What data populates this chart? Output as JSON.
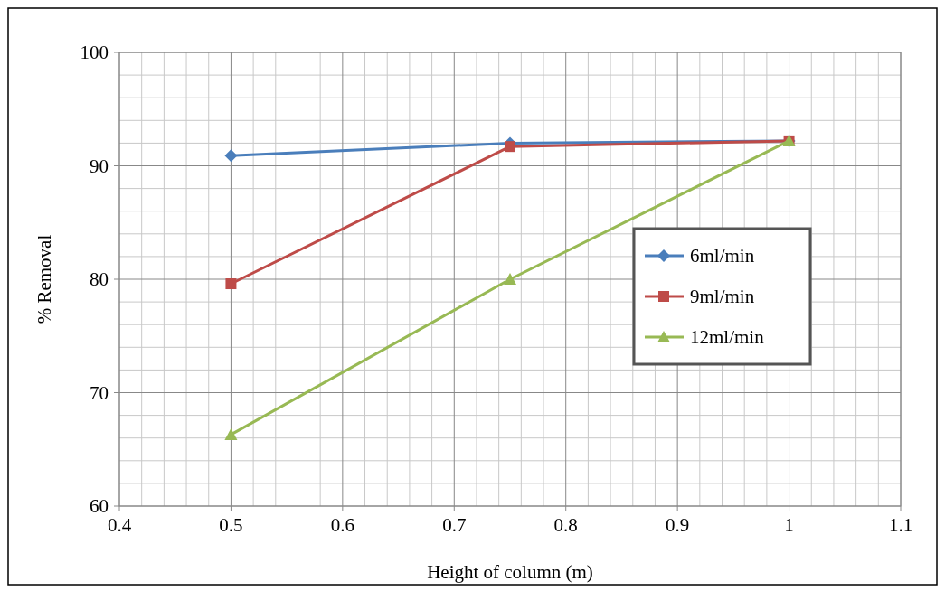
{
  "chart_data": {
    "type": "line",
    "xlabel": "Height of column (m)",
    "ylabel": "% Removal",
    "x": [
      0.5,
      0.75,
      1.0
    ],
    "series": [
      {
        "name": "6ml/min",
        "color": "#4a7ebb",
        "marker": "diamond",
        "values": [
          90.9,
          92.0,
          92.2
        ]
      },
      {
        "name": "9ml/min",
        "color": "#be4b48",
        "marker": "square",
        "values": [
          79.6,
          91.7,
          92.2
        ]
      },
      {
        "name": "12ml/min",
        "color": "#98b954",
        "marker": "triangle",
        "values": [
          66.3,
          80.0,
          92.2
        ]
      }
    ],
    "xlim": [
      0.4,
      1.1
    ],
    "xticks": [
      0.4,
      0.5,
      0.6,
      0.7,
      0.8,
      0.9,
      1,
      1.1
    ],
    "ylim": [
      60,
      100
    ],
    "yticks": [
      60,
      70,
      80,
      90,
      100
    ],
    "grid": true,
    "legend": "right"
  }
}
